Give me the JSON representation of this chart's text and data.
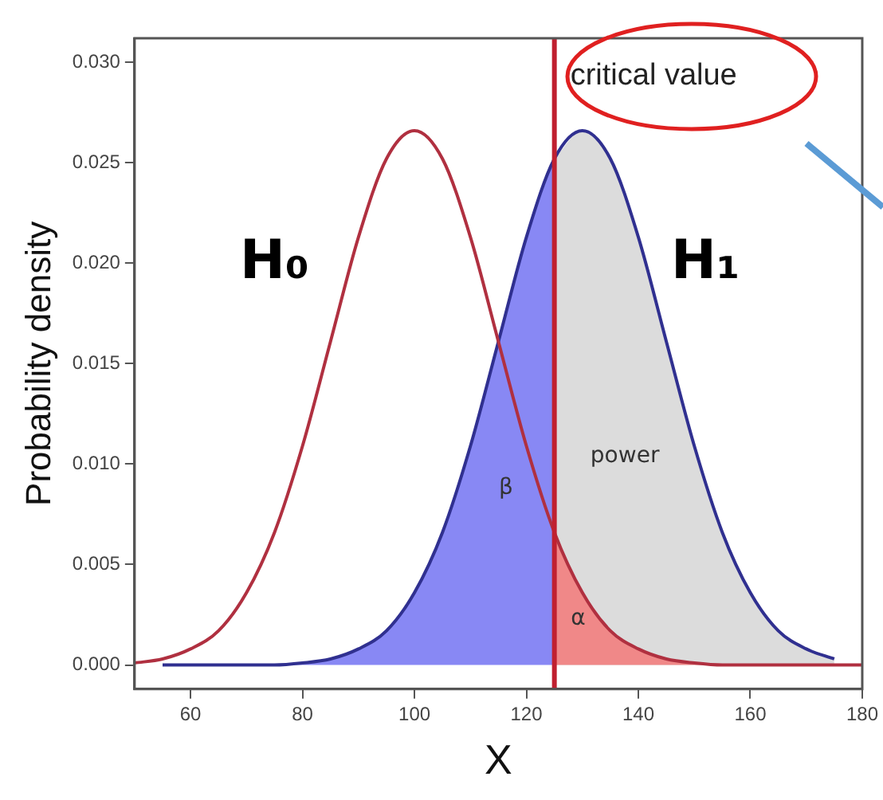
{
  "chart_data": {
    "type": "line",
    "xlabel": "X",
    "ylabel": "Probability density",
    "xlim": [
      50,
      180
    ],
    "xticks": [
      60,
      80,
      100,
      120,
      140,
      160,
      180
    ],
    "ylim": [
      -0.0012,
      0.0312
    ],
    "yticks": [
      {
        "value": 0,
        "label": "0.000"
      },
      {
        "value": 0.005,
        "label": "0.005"
      },
      {
        "value": 0.01,
        "label": "0.010"
      },
      {
        "value": 0.015,
        "label": "0.015"
      },
      {
        "value": 0.02,
        "label": "0.020"
      },
      {
        "value": 0.025,
        "label": "0.025"
      },
      {
        "value": 0.03,
        "label": "0.030"
      }
    ],
    "grid": false,
    "legend": false,
    "marker": "none",
    "series": [
      {
        "name": "β",
        "type": "area",
        "color": "#8888f4",
        "x": [
          55,
          60,
          65,
          70,
          75,
          80,
          85,
          90,
          95,
          100,
          105,
          110,
          115,
          120,
          125
        ],
        "values": [
          0,
          0,
          0,
          0,
          0,
          0.0001,
          0.0003,
          0.0008,
          0.0017,
          0.0036,
          0.0066,
          0.0109,
          0.0161,
          0.0213,
          0.0252
        ]
      },
      {
        "name": "α",
        "type": "area",
        "color": "#f08888",
        "x": [
          125,
          130,
          135,
          140,
          145,
          150,
          155,
          160,
          165,
          170,
          175,
          180
        ],
        "values": [
          0.0066,
          0.0036,
          0.0017,
          0.0008,
          0.0003,
          0.0001,
          0,
          0,
          0,
          0,
          0,
          0
        ]
      },
      {
        "name": "power",
        "type": "area",
        "color": "#dcdcdc",
        "x": [
          125,
          130,
          135,
          140,
          145,
          150,
          155,
          160,
          165,
          170,
          175
        ],
        "values": [
          0.0252,
          0.0266,
          0.0252,
          0.0213,
          0.0161,
          0.0109,
          0.0066,
          0.0036,
          0.0017,
          0.0008,
          0.0003
        ]
      },
      {
        "name": "H₀",
        "type": "line",
        "color": "#b03040",
        "x": [
          50,
          55,
          60,
          65,
          70,
          75,
          80,
          85,
          90,
          95,
          100,
          105,
          110,
          115,
          120,
          125,
          130,
          135,
          140,
          145,
          150,
          155,
          160,
          165,
          170,
          175,
          180
        ],
        "values": [
          0.0001,
          0.0003,
          0.0008,
          0.0017,
          0.0036,
          0.0066,
          0.0109,
          0.0161,
          0.0213,
          0.0252,
          0.0266,
          0.0252,
          0.0213,
          0.0161,
          0.0109,
          0.0066,
          0.0036,
          0.0017,
          0.0008,
          0.0003,
          0.0001,
          0,
          0,
          0,
          0,
          0,
          0
        ]
      },
      {
        "name": "H₁",
        "type": "line",
        "color": "#303090",
        "x": [
          55,
          60,
          65,
          70,
          75,
          80,
          85,
          90,
          95,
          100,
          105,
          110,
          115,
          120,
          125,
          130,
          135,
          140,
          145,
          150,
          155,
          160,
          165,
          170,
          175
        ],
        "values": [
          0,
          0,
          0,
          0,
          0,
          0.0001,
          0.0003,
          0.0008,
          0.0017,
          0.0036,
          0.0066,
          0.0109,
          0.0161,
          0.0213,
          0.0252,
          0.0266,
          0.0252,
          0.0213,
          0.0161,
          0.0109,
          0.0066,
          0.0036,
          0.0017,
          0.0008,
          0.0003
        ]
      }
    ],
    "ref_lines": [
      {
        "axis": "x",
        "value": 125,
        "label": "critical value",
        "color": "#c02030"
      }
    ]
  }
}
